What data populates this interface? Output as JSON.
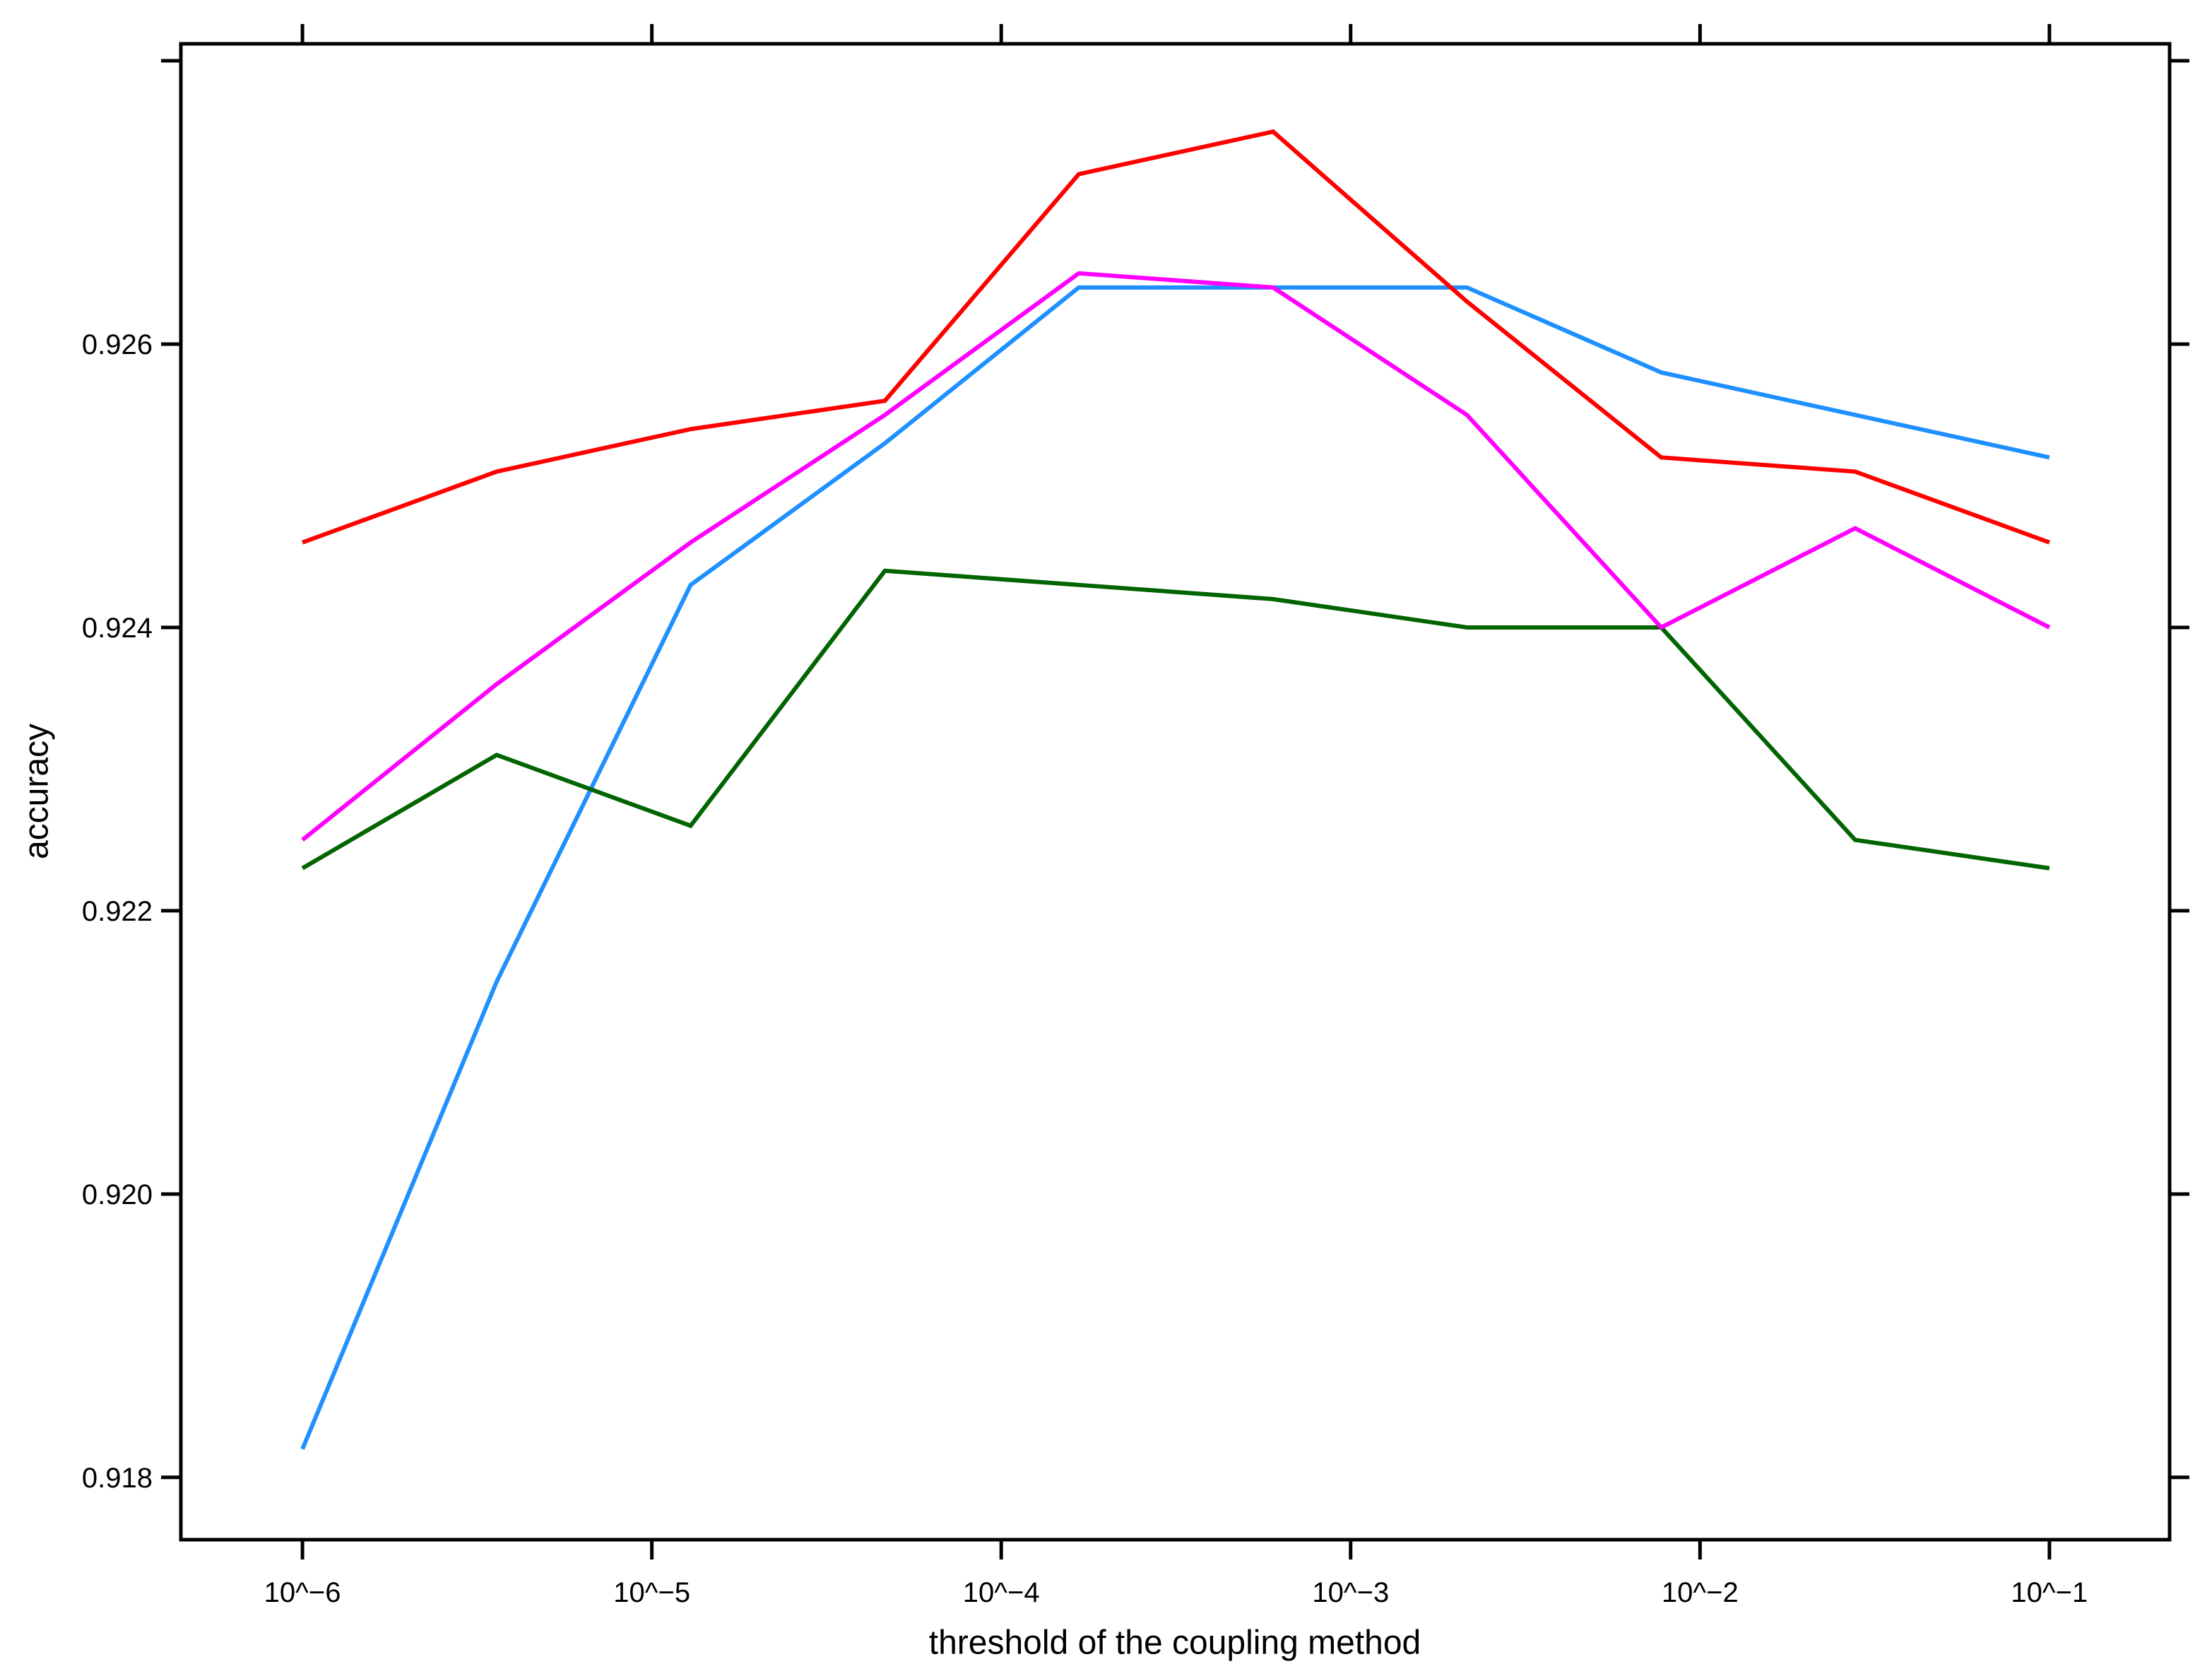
{
  "chart_data": {
    "type": "line",
    "title": "",
    "xlabel": "threshold of the coupling method",
    "ylabel": "accuracy",
    "x_scale": "log10",
    "grid": false,
    "legend": "none",
    "xlim_log10": [
      -6.348,
      -0.656
    ],
    "ylim": [
      0.91756,
      0.92812
    ],
    "x_ticks": [
      {
        "value_log10": -6,
        "label": "10^−6"
      },
      {
        "value_log10": -5,
        "label": "10^−5"
      },
      {
        "value_log10": -4,
        "label": "10^−4"
      },
      {
        "value_log10": -3,
        "label": "10^−3"
      },
      {
        "value_log10": -2,
        "label": "10^−2"
      },
      {
        "value_log10": -1,
        "label": "10^−1"
      }
    ],
    "y_ticks": [
      {
        "value": 0.918,
        "label": "0.918"
      },
      {
        "value": 0.92,
        "label": "0.920"
      },
      {
        "value": 0.922,
        "label": "0.922"
      },
      {
        "value": 0.924,
        "label": "0.924"
      },
      {
        "value": 0.926,
        "label": "0.926"
      }
    ],
    "y_extra_unlabeled_ticks": [
      0.928
    ],
    "x_log10": [
      -6.0,
      -5.444,
      -4.889,
      -4.333,
      -3.778,
      -3.222,
      -2.667,
      -2.111,
      -1.556,
      -1.0
    ],
    "x_thresholds_approx": [
      1e-06,
      3.6e-06,
      1.3e-05,
      4.6e-05,
      0.00017,
      0.0006,
      0.0022,
      0.0077,
      0.028,
      0.1
    ],
    "series": [
      {
        "name": "blue",
        "color": "#1e90ff",
        "values": [
          0.9182,
          0.9215,
          0.9243,
          0.9253,
          0.9264,
          0.9264,
          0.9264,
          0.9258,
          0.9255,
          0.9252
        ]
      },
      {
        "name": "green",
        "color": "#006400",
        "values": [
          0.9223,
          0.9231,
          0.9226,
          0.9244,
          0.9243,
          0.9242,
          0.924,
          0.924,
          0.9225,
          0.9223
        ]
      },
      {
        "name": "magenta",
        "color": "#ff00ff",
        "values": [
          0.9225,
          0.9236,
          0.9246,
          0.9255,
          0.9265,
          0.9264,
          0.9255,
          0.924,
          0.9247,
          0.924
        ]
      },
      {
        "name": "red",
        "color": "#ff0000",
        "values": [
          0.9246,
          0.9251,
          0.9254,
          0.9256,
          0.9272,
          0.9275,
          0.9263,
          0.9252,
          0.9251,
          0.9246
        ]
      }
    ]
  }
}
